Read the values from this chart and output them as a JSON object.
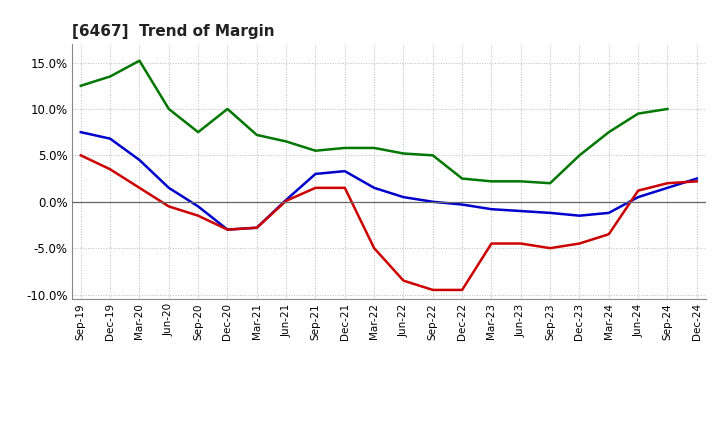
{
  "title": "[6467]  Trend of Margin",
  "x_labels": [
    "Sep-19",
    "Dec-19",
    "Mar-20",
    "Jun-20",
    "Sep-20",
    "Dec-20",
    "Mar-21",
    "Jun-21",
    "Sep-21",
    "Dec-21",
    "Mar-22",
    "Jun-22",
    "Sep-22",
    "Dec-22",
    "Mar-23",
    "Jun-23",
    "Sep-23",
    "Dec-23",
    "Mar-24",
    "Jun-24",
    "Sep-24",
    "Dec-24"
  ],
  "ordinary_income": [
    7.5,
    6.8,
    4.5,
    1.5,
    -0.5,
    -3.0,
    -2.8,
    0.2,
    3.0,
    3.3,
    1.5,
    0.5,
    0.0,
    -0.3,
    -0.8,
    -1.0,
    -1.2,
    -1.5,
    -1.2,
    0.5,
    1.5,
    2.5
  ],
  "net_income": [
    5.0,
    3.5,
    1.5,
    -0.5,
    -1.5,
    -3.0,
    -2.8,
    0.1,
    1.5,
    1.5,
    -5.0,
    -8.5,
    -9.5,
    -9.5,
    -4.5,
    -4.5,
    -5.0,
    -4.5,
    -3.5,
    1.2,
    2.0,
    2.2
  ],
  "operating_cashflow": [
    12.5,
    13.5,
    15.2,
    10.0,
    7.5,
    10.0,
    7.2,
    6.5,
    5.5,
    5.8,
    5.8,
    5.2,
    5.0,
    2.5,
    2.2,
    2.2,
    2.0,
    5.0,
    7.5,
    9.5,
    10.0,
    null
  ],
  "ylim": [
    -10.5,
    17.0
  ],
  "yticks": [
    -10.0,
    -5.0,
    0.0,
    5.0,
    10.0,
    15.0
  ],
  "line_colors": {
    "ordinary_income": "#0000cc",
    "net_income": "#cc0000",
    "operating_cashflow": "#007700"
  },
  "line_width": 1.8,
  "background_color": "#ffffff",
  "grid_color": "#bbbbbb"
}
